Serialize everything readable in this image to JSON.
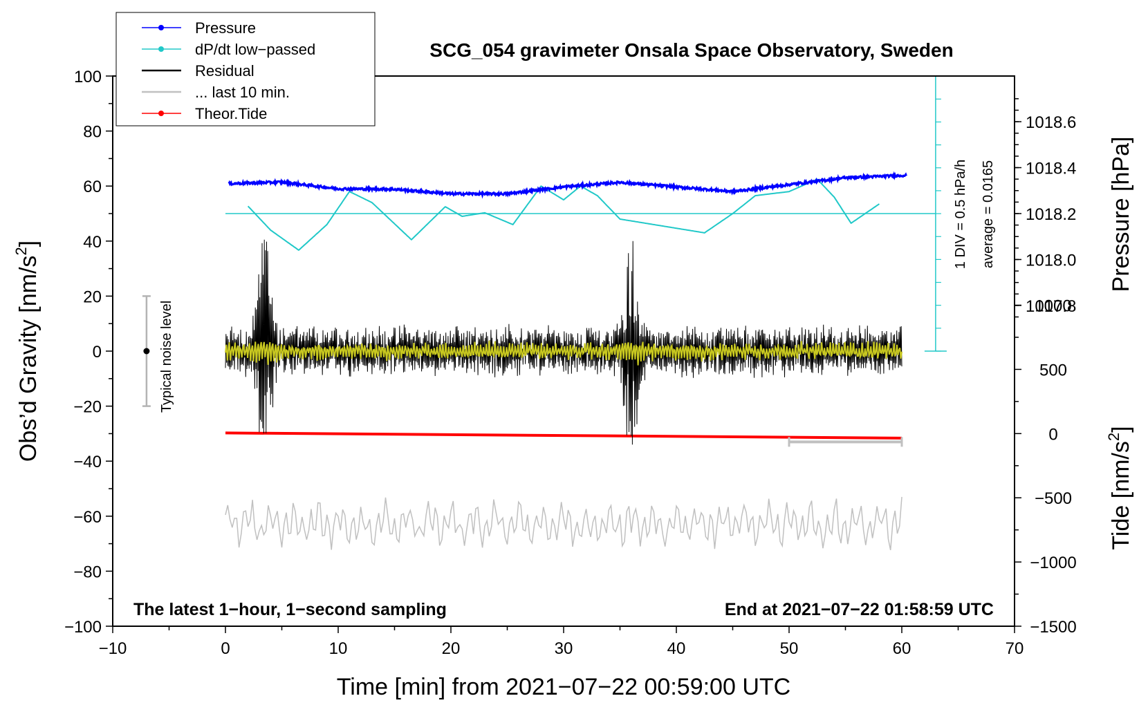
{
  "chart_data": {
    "type": "line",
    "title": "SCG_054 gravimeter Onsala Space Observatory, Sweden",
    "xlabel": "Time [min] from 2021−07−22 00:59:00 UTC",
    "ylabel_left": "Obs’d Gravity [nm/s",
    "ylabel_left_sup": "2",
    "ylabel_left_end": "]",
    "ylabel_right_pressure": "Pressure [hPa]",
    "ylabel_right_tide": "Tide [nm/s",
    "ylabel_right_tide_sup": "2",
    "ylabel_right_tide_end": "]",
    "xlim": [
      -10,
      70
    ],
    "ylim": [
      -100,
      100
    ],
    "x_ticks": [
      -10,
      0,
      10,
      20,
      30,
      40,
      50,
      60,
      70
    ],
    "x_tick_labels": [
      "−10",
      "0",
      "10",
      "20",
      "30",
      "40",
      "50",
      "60",
      "70"
    ],
    "y_ticks": [
      -100,
      -80,
      -60,
      -40,
      -20,
      0,
      20,
      40,
      60,
      80,
      100
    ],
    "y_tick_labels": [
      "−100",
      "−80",
      "−60",
      "−40",
      "−20",
      "0",
      "20",
      "40",
      "60",
      "80",
      "100"
    ],
    "pressure_ticks": [
      1017.8,
      1018.0,
      1018.2,
      1018.4,
      1018.6
    ],
    "pressure_tick_labels": [
      "1017.8",
      "1018.0",
      "1018.2",
      "1018.4",
      "1018.6"
    ],
    "pressure_axis_map": {
      "value": [
        1018.2,
        1018.4
      ],
      "gravity_equiv": [
        50,
        66.7
      ]
    },
    "tide_ticks": [
      -1500,
      -1000,
      -500,
      0,
      500,
      1000
    ],
    "tide_tick_labels": [
      "−1500",
      "−1000",
      "−500",
      "0",
      "500",
      "1000"
    ],
    "tide_axis_map": {
      "value": [
        -1500,
        1000
      ],
      "gravity_equiv": [
        -100,
        16.7
      ]
    },
    "legend": [
      {
        "label": "Pressure",
        "color": "#0000ff",
        "marker": true
      },
      {
        "label": "dP/dt low−passed",
        "color": "#20c8c8",
        "marker": true
      },
      {
        "label": "Residual",
        "color": "#000000",
        "marker": false
      },
      {
        "label": "... last 10 min.",
        "color": "#c0c0c0",
        "marker": false
      },
      {
        "label": "Theor.Tide",
        "color": "#ff0000",
        "marker": true
      }
    ],
    "legend_position": "top-left",
    "series": [
      {
        "name": "Pressure",
        "color": "#0000ff",
        "axis": "pressure",
        "x": [
          0,
          5,
          10,
          15,
          20,
          25,
          30,
          35,
          40,
          45,
          50,
          55,
          60
        ],
        "values": [
          1018.33,
          1018.337,
          1018.308,
          1018.306,
          1018.286,
          1018.286,
          1018.316,
          1018.336,
          1018.316,
          1018.296,
          1018.326,
          1018.356,
          1018.366
        ]
      },
      {
        "name": "dP/dt low−passed",
        "color": "#20c8c8",
        "axis": "gravity",
        "x": [
          2,
          4,
          6.5,
          9,
          11,
          13,
          16.5,
          19.5,
          21,
          23,
          25.5,
          28,
          30,
          31.5,
          33,
          35,
          38,
          42.5,
          45,
          47,
          50,
          52.5,
          54,
          55.5,
          58
        ],
        "values": [
          52.7,
          44,
          36.7,
          46,
          58,
          54,
          40.5,
          52.5,
          49,
          50.3,
          46,
          60,
          55,
          60,
          56.5,
          48,
          46,
          43,
          50,
          56.5,
          58,
          62.5,
          56,
          46.5,
          53.5
        ]
      },
      {
        "name": "dP/dt reference line",
        "color": "#20c8c8",
        "axis": "gravity",
        "x": [
          0,
          60
        ],
        "values": [
          50,
          50
        ]
      },
      {
        "name": "Residual",
        "color": "#000000",
        "axis": "gravity",
        "x_range": [
          0,
          60
        ],
        "envelope_rms": 8,
        "bursts": [
          {
            "x": 3.5,
            "peak": 40
          },
          {
            "x": 36,
            "peak": 33
          }
        ],
        "min": -34,
        "max": 40.5
      },
      {
        "name": "Residual smoothed",
        "color": "#c8c820",
        "axis": "gravity",
        "x_range": [
          0,
          60
        ],
        "envelope_rms": 3
      },
      {
        "name": "... last 10 min.",
        "color": "#c0c0c0",
        "axis": "gravity",
        "x_range": [
          0,
          60
        ],
        "center": -63,
        "min": -73,
        "max": -53
      },
      {
        "name": "Theor.Tide",
        "color": "#ff0000",
        "axis": "tide",
        "x": [
          0,
          60
        ],
        "values": [
          5,
          -35
        ]
      }
    ],
    "noise_bar": {
      "x": -7,
      "y_low": -20,
      "y_high": 20,
      "center": 0,
      "label": "Typical noise level"
    },
    "scale_bar": {
      "x_start": 50,
      "x_end": 60,
      "y": -33
    },
    "pressure_div": {
      "x": 63,
      "y_top": 100,
      "y_bottom": 0,
      "label1": "1 DIV = 0.5 hPa/h",
      "label2": "average = 0.0165"
    },
    "annotation_left": "The latest 1−hour, 1−second sampling",
    "annotation_right": "End at 2021−07−22 01:58:59 UTC"
  }
}
